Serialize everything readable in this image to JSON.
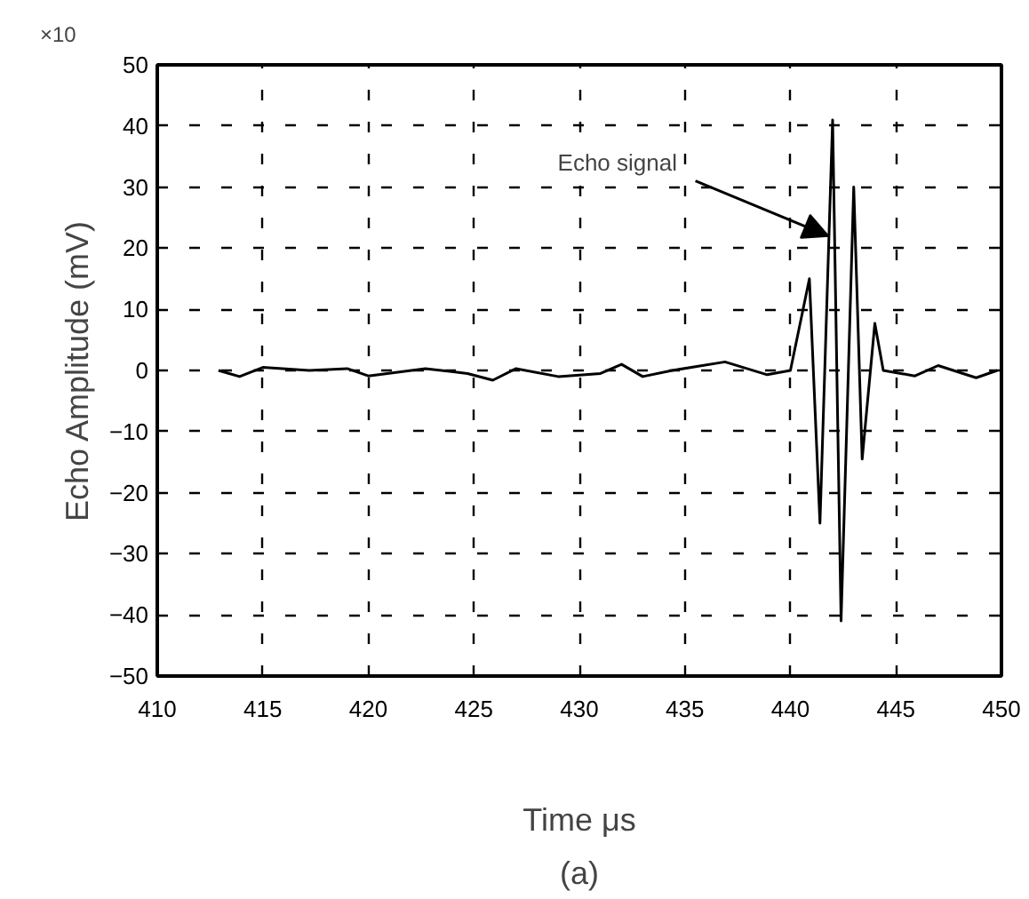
{
  "chart_data": {
    "type": "line",
    "xlabel": "Time μs",
    "ylabel": "Echo Amplitude (mV)",
    "annotations": [
      "×10",
      {
        "text": "Echo signal",
        "x": 441.8,
        "y": 22
      },
      "(a)"
    ],
    "x": [
      412.9,
      413.9,
      415.0,
      417.2,
      419.0,
      420.0,
      422.7,
      424.7,
      425.9,
      427.0,
      429.0,
      431.0,
      432.0,
      433.0,
      434.4,
      436.9,
      438.9,
      440.0,
      440.9,
      441.4,
      442.0,
      442.4,
      443.0,
      443.4,
      444.0,
      444.4,
      445.9,
      447.0,
      448.8,
      449.8
    ],
    "series": [
      {
        "color": "#000000",
        "values": [
          0,
          -1,
          0.5,
          0,
          0.3,
          -0.9,
          0.3,
          -0.5,
          -1.6,
          0.3,
          -1,
          -0.5,
          1,
          -1,
          0,
          1.4,
          -0.7,
          0,
          15,
          -25,
          41,
          -41,
          30,
          -14.5,
          7.7,
          0,
          -0.9,
          0.8,
          -1.2,
          0
        ]
      }
    ],
    "xlim": [
      410,
      450
    ],
    "ylim": [
      -50,
      50
    ],
    "xticks": [
      410,
      415,
      420,
      425,
      430,
      435,
      440,
      445,
      450
    ],
    "yticks": [
      -50,
      -40,
      -30,
      -20,
      -10,
      0,
      10,
      20,
      30,
      40,
      50
    ],
    "grid": true,
    "line_style": "solid",
    "marker": "none"
  }
}
